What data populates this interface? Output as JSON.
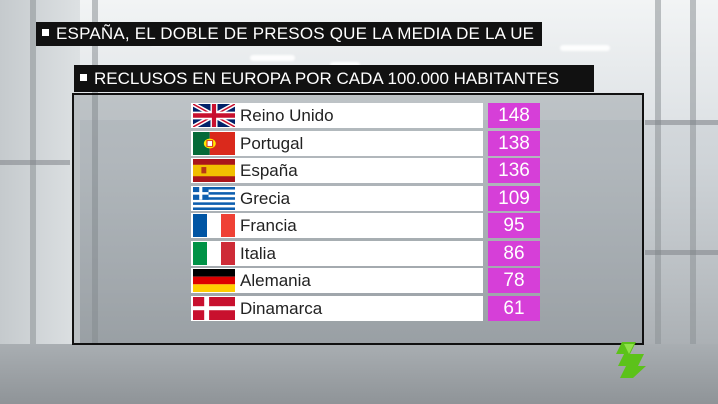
{
  "headline": "ESPAÑA, EL DOBLE DE PRESOS QUE LA MEDIA DE LA UE",
  "subheadline": "RECLUSOS EN EUROPA POR CADA 100.000 HABITANTES",
  "chart_data": {
    "type": "table",
    "title": "RECLUSOS EN EUROPA POR CADA 100.000 HABITANTES",
    "categories": [
      "Reino Unido",
      "Portugal",
      "España",
      "Grecia",
      "Francia",
      "Italia",
      "Alemania",
      "Dinamarca"
    ],
    "values": [
      148,
      138,
      136,
      109,
      95,
      86,
      78,
      61
    ]
  },
  "rows": [
    {
      "country": "Reino Unido",
      "value": "148",
      "flag": "uk-flag-icon"
    },
    {
      "country": "Portugal",
      "value": "138",
      "flag": "portugal-flag-icon"
    },
    {
      "country": "España",
      "value": "136",
      "flag": "spain-flag-icon"
    },
    {
      "country": "Grecia",
      "value": "109",
      "flag": "greece-flag-icon"
    },
    {
      "country": "Francia",
      "value": "95",
      "flag": "france-flag-icon"
    },
    {
      "country": "Italia",
      "value": "86",
      "flag": "italy-flag-icon"
    },
    {
      "country": "Alemania",
      "value": "78",
      "flag": "germany-flag-icon"
    },
    {
      "country": "Dinamarca",
      "value": "61",
      "flag": "denmark-flag-icon"
    }
  ],
  "colors": {
    "value_box": "#d63fd8",
    "caption_bg": "#111111",
    "logo_green": "#5cc21a"
  },
  "logo_icon": "lasexta-logo-icon"
}
